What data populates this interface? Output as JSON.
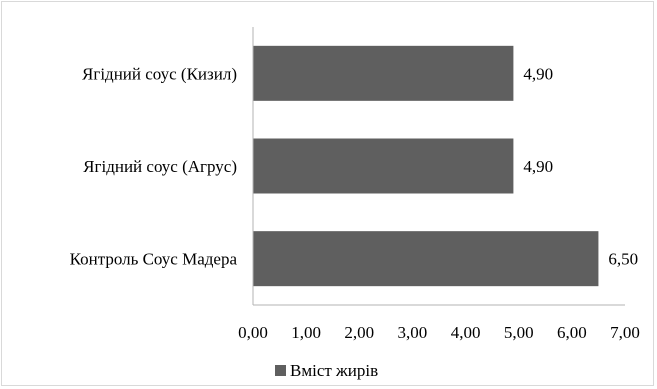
{
  "chart_data": {
    "type": "bar",
    "orientation": "horizontal",
    "categories": [
      "Ягідний соус (Кизил)",
      "Ягідний соус (Агрус)",
      "Контроль Соус Мадера"
    ],
    "series": [
      {
        "name": "Вміст жирів",
        "values": [
          4.9,
          4.9,
          6.5
        ],
        "value_labels": [
          "4,90",
          "4,90",
          "6,50"
        ],
        "color": "#5f5f5f"
      }
    ],
    "xlim": [
      0,
      7
    ],
    "x_ticks": [
      "0,00",
      "1,00",
      "2,00",
      "3,00",
      "4,00",
      "5,00",
      "6,00",
      "7,00"
    ],
    "grid": false,
    "legend_position": "bottom-left",
    "title": "",
    "xlabel": "",
    "ylabel": ""
  }
}
